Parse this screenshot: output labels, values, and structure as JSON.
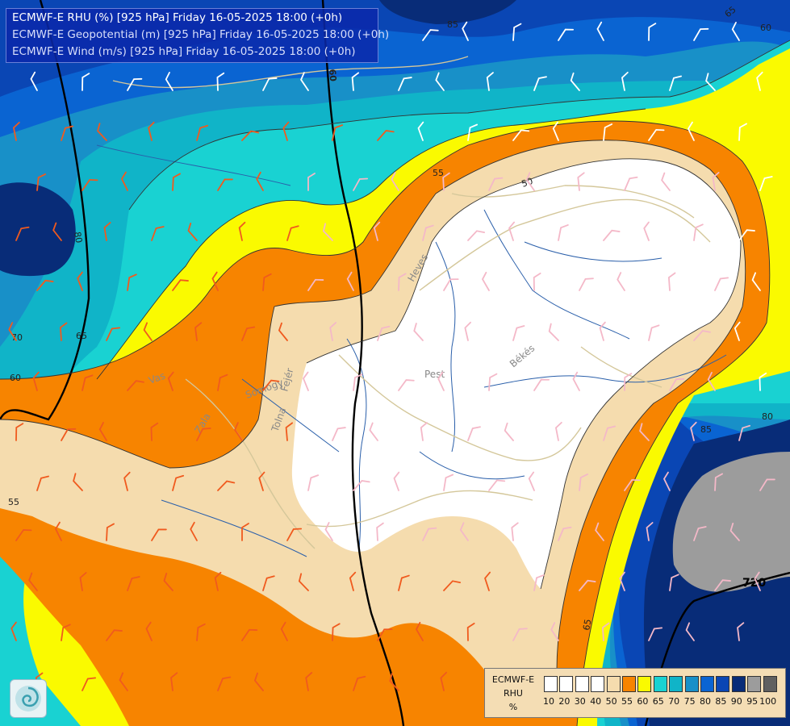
{
  "header": {
    "lines": [
      "ECMWF-E RHU (%) [925 hPa] Friday 16-05-2025 18:00 (+0h)",
      "ECMWF-E Geopotential (m) [925 hPa] Friday 16-05-2025 18:00 (+0h)",
      "ECMWF-E Wind (m/s) [925 hPa] Friday 16-05-2025 18:00 (+0h)"
    ]
  },
  "map": {
    "place_labels": [
      "Heves",
      "Pest",
      "Békés",
      "Vas",
      "Somogy",
      "Zala",
      "Tolna",
      "Fejér"
    ],
    "contour_labels": [
      "85",
      "65",
      "60",
      "80",
      "60",
      "70",
      "65",
      "60",
      "55",
      "50",
      "55",
      "85",
      "80",
      "65",
      "720"
    ],
    "colors": {
      "c100": "#ffffff",
      "c50": "#f5dcae",
      "c55": "#f78400",
      "c60": "#fafa00",
      "c65": "#19d2d2",
      "c70": "#10b4c8",
      "c75": "#1890c8",
      "c80": "#0a64d2",
      "c85": "#0a46b4",
      "c90": "#082c78",
      "c95": "#9c9c9c",
      "border": "#d4c79a",
      "river": "#2a5faa",
      "isoline": "#000000"
    }
  },
  "legend": {
    "title_lines": [
      "ECMWF-E",
      "RHU",
      "%"
    ],
    "ticks": [
      "10",
      "20",
      "30",
      "40",
      "50",
      "55",
      "60",
      "65",
      "70",
      "75",
      "80",
      "85",
      "90",
      "95",
      "100"
    ],
    "swatches": [
      "#ffffff",
      "#ffffff",
      "#ffffff",
      "#ffffff",
      "#f5dcae",
      "#f78400",
      "#fafa00",
      "#19d2d2",
      "#10b4c8",
      "#1890c8",
      "#0a64d2",
      "#0a46b4",
      "#082c78",
      "#9c9c9c",
      "#606060"
    ]
  },
  "logo": {
    "icon": "ogimet-swirl-icon"
  }
}
